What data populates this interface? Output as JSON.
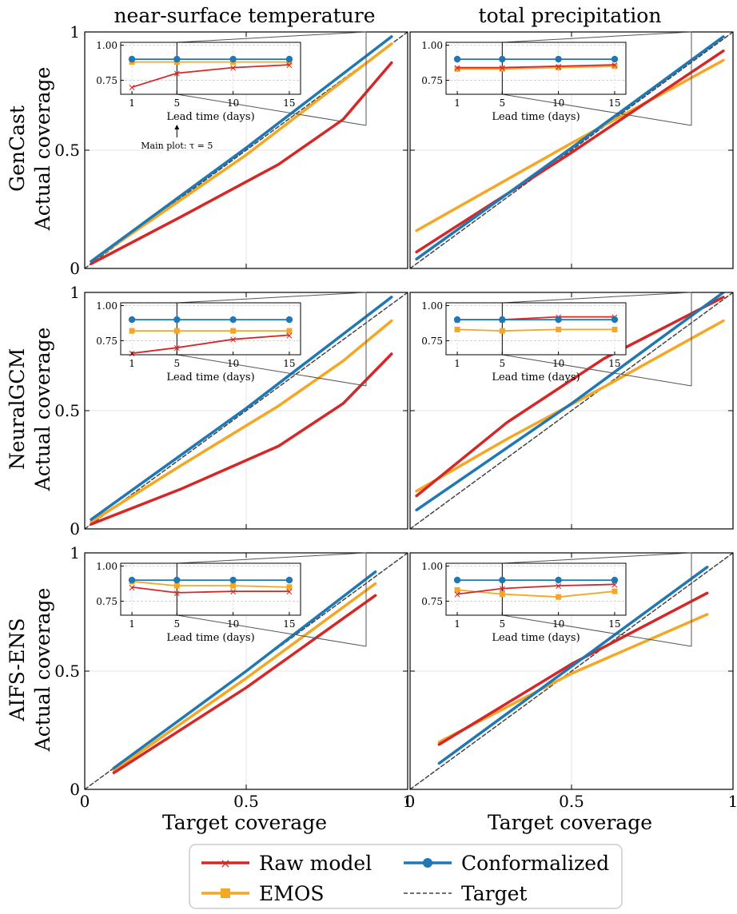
{
  "columns": [
    "near-surface temperature",
    "total precipitation"
  ],
  "rows": [
    {
      "model": "GenCast",
      "ylabel": "Actual coverage"
    },
    {
      "model": "NeuralGCM",
      "ylabel": "Actual coverage"
    },
    {
      "model": "AIFS-ENS",
      "ylabel": "Actual coverage"
    }
  ],
  "xlabel": "Target coverage",
  "main_ticks": {
    "x": [
      "0",
      "0.5",
      "1"
    ],
    "y": [
      "0",
      "0.5",
      "1"
    ]
  },
  "inset": {
    "xlabel": "Lead time (days)",
    "xticks": [
      "1",
      "5",
      "10",
      "15"
    ],
    "yticks": [
      "0.75",
      "1.00"
    ],
    "annotation": "Main plot: τ = 5"
  },
  "legend": {
    "items": [
      "Raw model",
      "Conformalized",
      "EMOS",
      "Target"
    ],
    "placement": "bottom-center",
    "colors": {
      "Raw model": "#d62728",
      "Conformalized": "#1f77b4",
      "EMOS": "#f5a623",
      "Target": "#444444"
    }
  },
  "chart_data": [
    {
      "type": "line",
      "row": "GenCast",
      "column": "near-surface temperature",
      "xlim": [
        0,
        1
      ],
      "ylim": [
        0,
        1
      ],
      "grid": true,
      "series": [
        {
          "name": "Raw model",
          "x": [
            0.02,
            0.3,
            0.6,
            0.8,
            0.95
          ],
          "y": [
            0.02,
            0.22,
            0.44,
            0.63,
            0.87
          ]
        },
        {
          "name": "EMOS",
          "x": [
            0.02,
            0.5,
            0.95
          ],
          "y": [
            0.03,
            0.48,
            0.95
          ]
        },
        {
          "name": "Conformalized",
          "x": [
            0.02,
            0.5,
            0.95
          ],
          "y": [
            0.03,
            0.51,
            0.98
          ]
        },
        {
          "name": "Target",
          "x": [
            0,
            1
          ],
          "y": [
            0,
            1
          ]
        }
      ],
      "inset": {
        "x": [
          1,
          5,
          10,
          15
        ],
        "series": [
          {
            "name": "Raw model",
            "y": [
              0.7,
              0.8,
              0.84,
              0.86
            ]
          },
          {
            "name": "EMOS",
            "y": [
              0.88,
              0.88,
              0.88,
              0.88
            ]
          },
          {
            "name": "Conformalized",
            "y": [
              0.9,
              0.9,
              0.9,
              0.9
            ]
          },
          {
            "name": "Target",
            "y": [
              0.9,
              0.9,
              0.9,
              0.9
            ]
          }
        ]
      }
    },
    {
      "type": "line",
      "row": "GenCast",
      "column": "total precipitation",
      "xlim": [
        0,
        1
      ],
      "ylim": [
        0,
        1
      ],
      "grid": true,
      "series": [
        {
          "name": "Raw model",
          "x": [
            0.02,
            0.5,
            0.97
          ],
          "y": [
            0.07,
            0.49,
            0.92
          ]
        },
        {
          "name": "EMOS",
          "x": [
            0.02,
            0.5,
            0.97
          ],
          "y": [
            0.16,
            0.53,
            0.88
          ]
        },
        {
          "name": "Conformalized",
          "x": [
            0.02,
            0.5,
            0.97
          ],
          "y": [
            0.04,
            0.51,
            0.98
          ]
        },
        {
          "name": "Target",
          "x": [
            0,
            1
          ],
          "y": [
            0,
            1
          ]
        }
      ],
      "inset": {
        "x": [
          1,
          5,
          10,
          15
        ],
        "series": [
          {
            "name": "Raw model",
            "y": [
              0.84,
              0.84,
              0.85,
              0.86
            ]
          },
          {
            "name": "EMOS",
            "y": [
              0.83,
              0.83,
              0.84,
              0.85
            ]
          },
          {
            "name": "Conformalized",
            "y": [
              0.9,
              0.9,
              0.9,
              0.9
            ]
          },
          {
            "name": "Target",
            "y": [
              0.9,
              0.9,
              0.9,
              0.9
            ]
          }
        ]
      }
    },
    {
      "type": "line",
      "row": "NeuralGCM",
      "column": "near-surface temperature",
      "xlim": [
        0,
        1
      ],
      "ylim": [
        0,
        1
      ],
      "grid": true,
      "series": [
        {
          "name": "Raw model",
          "x": [
            0.02,
            0.3,
            0.6,
            0.8,
            0.95
          ],
          "y": [
            0.02,
            0.17,
            0.35,
            0.53,
            0.74
          ]
        },
        {
          "name": "EMOS",
          "x": [
            0.02,
            0.3,
            0.6,
            0.8,
            0.95
          ],
          "y": [
            0.03,
            0.27,
            0.52,
            0.71,
            0.88
          ]
        },
        {
          "name": "Conformalized",
          "x": [
            0.02,
            0.5,
            0.95
          ],
          "y": [
            0.04,
            0.51,
            0.98
          ]
        },
        {
          "name": "Target",
          "x": [
            0,
            1
          ],
          "y": [
            0,
            1
          ]
        }
      ],
      "inset": {
        "x": [
          1,
          5,
          10,
          15
        ],
        "series": [
          {
            "name": "Raw model",
            "y": [
              0.66,
              0.7,
              0.76,
              0.79
            ]
          },
          {
            "name": "EMOS",
            "y": [
              0.82,
              0.82,
              0.82,
              0.82
            ]
          },
          {
            "name": "Conformalized",
            "y": [
              0.9,
              0.9,
              0.9,
              0.9
            ]
          },
          {
            "name": "Target",
            "y": [
              0.9,
              0.9,
              0.9,
              0.9
            ]
          }
        ]
      }
    },
    {
      "type": "line",
      "row": "NeuralGCM",
      "column": "total precipitation",
      "xlim": [
        0,
        1
      ],
      "ylim": [
        0,
        1
      ],
      "grid": true,
      "series": [
        {
          "name": "Raw model",
          "x": [
            0.02,
            0.3,
            0.6,
            0.97
          ],
          "y": [
            0.14,
            0.45,
            0.72,
            0.98
          ]
        },
        {
          "name": "EMOS",
          "x": [
            0.02,
            0.3,
            0.6,
            0.97
          ],
          "y": [
            0.16,
            0.38,
            0.6,
            0.88
          ]
        },
        {
          "name": "Conformalized",
          "x": [
            0.02,
            0.5,
            0.97
          ],
          "y": [
            0.08,
            0.53,
            1.0
          ]
        },
        {
          "name": "Target",
          "x": [
            0,
            1
          ],
          "y": [
            0,
            1
          ]
        }
      ],
      "inset": {
        "x": [
          1,
          5,
          10,
          15
        ],
        "series": [
          {
            "name": "Raw model",
            "y": [
              0.9,
              0.9,
              0.92,
              0.92
            ]
          },
          {
            "name": "EMOS",
            "y": [
              0.83,
              0.82,
              0.83,
              0.83
            ]
          },
          {
            "name": "Conformalized",
            "y": [
              0.9,
              0.9,
              0.9,
              0.9
            ]
          },
          {
            "name": "Target",
            "y": [
              0.9,
              0.9,
              0.9,
              0.9
            ]
          }
        ]
      }
    },
    {
      "type": "line",
      "row": "AIFS-ENS",
      "column": "near-surface temperature",
      "xlim": [
        0,
        1
      ],
      "ylim": [
        0,
        1
      ],
      "grid": true,
      "series": [
        {
          "name": "Raw model",
          "x": [
            0.09,
            0.5,
            0.9
          ],
          "y": [
            0.07,
            0.43,
            0.82
          ]
        },
        {
          "name": "EMOS",
          "x": [
            0.09,
            0.5,
            0.9
          ],
          "y": [
            0.08,
            0.47,
            0.87
          ]
        },
        {
          "name": "Conformalized",
          "x": [
            0.09,
            0.5,
            0.9
          ],
          "y": [
            0.09,
            0.5,
            0.92
          ]
        },
        {
          "name": "Target",
          "x": [
            0,
            1
          ],
          "y": [
            0,
            1
          ]
        }
      ],
      "inset": {
        "x": [
          1,
          5,
          10,
          15
        ],
        "series": [
          {
            "name": "Raw model",
            "y": [
              0.85,
              0.81,
              0.82,
              0.82
            ]
          },
          {
            "name": "EMOS",
            "y": [
              0.89,
              0.86,
              0.86,
              0.85
            ]
          },
          {
            "name": "Conformalized",
            "y": [
              0.9,
              0.9,
              0.9,
              0.9
            ]
          },
          {
            "name": "Target",
            "y": [
              0.9,
              0.9,
              0.9,
              0.9
            ]
          }
        ]
      }
    },
    {
      "type": "line",
      "row": "AIFS-ENS",
      "column": "total precipitation",
      "xlim": [
        0,
        1
      ],
      "ylim": [
        0,
        1
      ],
      "grid": true,
      "series": [
        {
          "name": "Raw model",
          "x": [
            0.09,
            0.5,
            0.92
          ],
          "y": [
            0.19,
            0.53,
            0.83
          ]
        },
        {
          "name": "EMOS",
          "x": [
            0.09,
            0.5,
            0.92
          ],
          "y": [
            0.2,
            0.49,
            0.74
          ]
        },
        {
          "name": "Conformalized",
          "x": [
            0.09,
            0.5,
            0.92
          ],
          "y": [
            0.11,
            0.52,
            0.94
          ]
        },
        {
          "name": "Target",
          "x": [
            0,
            1
          ],
          "y": [
            0,
            1
          ]
        }
      ],
      "inset": {
        "x": [
          1,
          5,
          10,
          15
        ],
        "series": [
          {
            "name": "Raw model",
            "y": [
              0.8,
              0.84,
              0.86,
              0.87
            ]
          },
          {
            "name": "EMOS",
            "y": [
              0.83,
              0.8,
              0.78,
              0.82
            ]
          },
          {
            "name": "Conformalized",
            "y": [
              0.9,
              0.9,
              0.9,
              0.9
            ]
          },
          {
            "name": "Target",
            "y": [
              0.9,
              0.9,
              0.9,
              0.9
            ]
          }
        ]
      }
    }
  ]
}
